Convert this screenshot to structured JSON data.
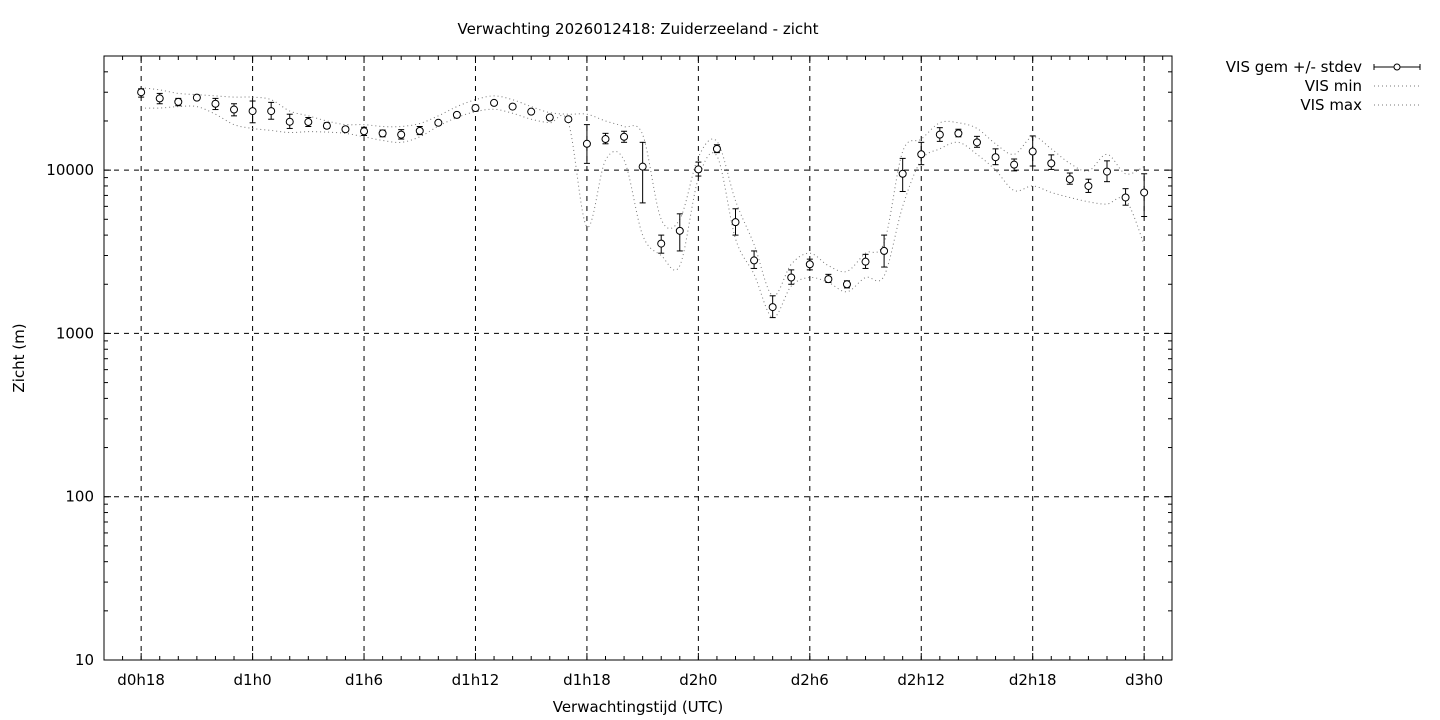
{
  "chart_data": {
    "type": "scatter",
    "title": "Verwachting 2026012418: Zuiderzeeland - zicht",
    "xlabel": "Verwachtingstijd (UTC)",
    "ylabel": "Zicht (m)",
    "yscale": "log",
    "ylim": [
      10,
      50000
    ],
    "xlim": [
      -2,
      55.5
    ],
    "grid": true,
    "legend_position": "outside-top-right",
    "x_ticks": [
      {
        "x": 0,
        "label": "d0h18"
      },
      {
        "x": 6,
        "label": "d1h0"
      },
      {
        "x": 12,
        "label": "d1h6"
      },
      {
        "x": 18,
        "label": "d1h12"
      },
      {
        "x": 24,
        "label": "d1h18"
      },
      {
        "x": 30,
        "label": "d2h0"
      },
      {
        "x": 36,
        "label": "d2h6"
      },
      {
        "x": 42,
        "label": "d2h12"
      },
      {
        "x": 48,
        "label": "d2h18"
      },
      {
        "x": 54,
        "label": "d3h0"
      }
    ],
    "y_ticks": [
      {
        "y": 10,
        "label": "10"
      },
      {
        "y": 100,
        "label": "100"
      },
      {
        "y": 1000,
        "label": "1000"
      },
      {
        "y": 10000,
        "label": "10000"
      }
    ],
    "x": [
      0,
      1,
      2,
      3,
      4,
      5,
      6,
      7,
      8,
      9,
      10,
      11,
      12,
      13,
      14,
      15,
      16,
      17,
      18,
      19,
      20,
      21,
      22,
      23,
      24,
      25,
      26,
      27,
      28,
      29,
      30,
      31,
      32,
      33,
      34,
      35,
      36,
      37,
      38,
      39,
      40,
      41,
      42,
      43,
      44,
      45,
      46,
      47,
      48,
      49,
      50,
      51,
      52,
      53,
      54
    ],
    "series": [
      {
        "name": "VIS gem +/- stdev",
        "style": "points-errorbars",
        "values": [
          30000,
          27500,
          26200,
          27800,
          25500,
          23500,
          23000,
          23000,
          19800,
          19700,
          18700,
          17800,
          17300,
          16800,
          16500,
          17400,
          19500,
          21800,
          24000,
          25800,
          24500,
          22800,
          21000,
          20500,
          14500,
          15500,
          16000,
          10500,
          3550,
          4250,
          10100,
          13500,
          4800,
          2800,
          1450,
          2200,
          2650,
          2150,
          2000,
          2750,
          3200,
          9500,
          12500,
          16500,
          16800,
          14800,
          12000,
          10800,
          13000,
          11000,
          8800,
          8000,
          9800,
          6800,
          7300
        ],
        "stdev_low": [
          28000,
          25500,
          24800,
          27000,
          23500,
          21500,
          19500,
          20500,
          18000,
          18500,
          18000,
          17200,
          16300,
          16000,
          15500,
          16500,
          19000,
          21000,
          23000,
          25200,
          24000,
          22500,
          20500,
          20000,
          11000,
          14500,
          14800,
          6300,
          3100,
          3200,
          9200,
          12800,
          4000,
          2500,
          1250,
          2000,
          2450,
          2050,
          1900,
          2500,
          2550,
          7400,
          10800,
          15000,
          16000,
          13800,
          10800,
          9900,
          10600,
          10100,
          8200,
          7300,
          8500,
          6100,
          5200
        ],
        "stdev_high": [
          31500,
          29500,
          27500,
          28800,
          27500,
          25500,
          26500,
          26000,
          22000,
          21000,
          19500,
          18400,
          18300,
          17600,
          17700,
          18500,
          20000,
          22500,
          25000,
          26500,
          25000,
          23200,
          21500,
          21000,
          19000,
          16800,
          17300,
          14800,
          4000,
          5400,
          11200,
          14300,
          5800,
          3200,
          1700,
          2450,
          2850,
          2300,
          2100,
          3050,
          4000,
          11800,
          14800,
          18200,
          17800,
          16100,
          13500,
          11700,
          16200,
          12400,
          9600,
          8800,
          11400,
          7700,
          9500
        ]
      },
      {
        "name": "VIS min",
        "style": "dotted",
        "values": [
          24000,
          24000,
          24500,
          24500,
          22000,
          19000,
          18000,
          17500,
          17000,
          17200,
          17100,
          16800,
          16000,
          15200,
          14800,
          16000,
          18600,
          21000,
          22800,
          23600,
          22300,
          20500,
          19500,
          19500,
          4500,
          11500,
          11500,
          4000,
          3000,
          2600,
          8900,
          12200,
          3800,
          2300,
          1250,
          1950,
          2200,
          2050,
          1800,
          2200,
          2250,
          6000,
          11500,
          13500,
          14800,
          12500,
          10000,
          7500,
          8000,
          7300,
          6800,
          6400,
          6200,
          6600,
          3500
        ]
      },
      {
        "name": "VIS max",
        "style": "dotted",
        "values": [
          32000,
          31000,
          29500,
          29000,
          28500,
          28000,
          28000,
          27000,
          23000,
          21500,
          20000,
          19000,
          19000,
          18500,
          18500,
          19300,
          21500,
          24500,
          27000,
          28500,
          27000,
          24500,
          22500,
          22000,
          22000,
          20000,
          18500,
          16500,
          5000,
          5000,
          12000,
          15000,
          6500,
          3500,
          1700,
          2650,
          3100,
          2600,
          2400,
          3100,
          3600,
          13000,
          15500,
          19500,
          19500,
          18000,
          14500,
          12500,
          16000,
          13500,
          11000,
          9900,
          12500,
          9500,
          10500
        ]
      }
    ]
  }
}
